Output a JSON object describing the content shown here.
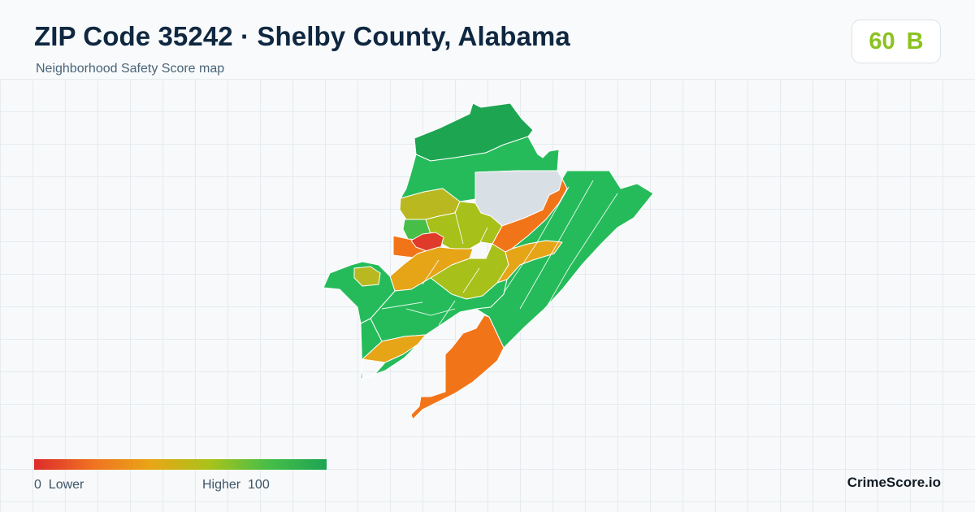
{
  "header": {
    "title": "ZIP Code 35242 · Shelby County, Alabama",
    "subtitle": "Neighborhood Safety Score map"
  },
  "score_badge": {
    "score": "60",
    "grade": "B",
    "color": "#8cc21f"
  },
  "legend": {
    "min_value": "0",
    "min_label": "Lower",
    "max_label": "Higher",
    "max_value": "100",
    "gradient_colors": [
      "#dd2b2b",
      "#f07222",
      "#e9a615",
      "#a9c31b",
      "#47be48",
      "#1da453"
    ]
  },
  "brand": "CrimeScore.io",
  "palette": {
    "dark_green": "#1ea552",
    "green": "#25bb5a",
    "yellow_green": "#a8c01a",
    "olive": "#b9b820",
    "amber": "#e6a417",
    "orange": "#f27419",
    "red": "#e03b2a",
    "no_data": "#d8dfe5"
  }
}
